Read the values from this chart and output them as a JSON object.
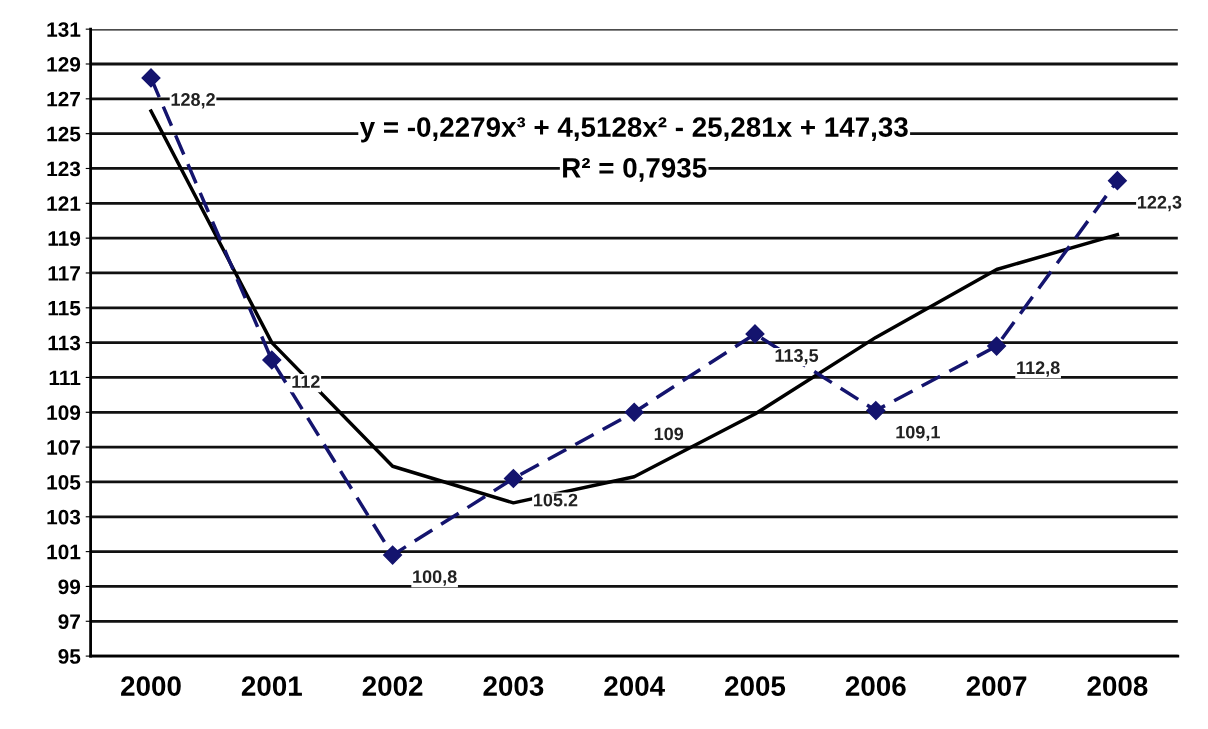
{
  "chart_data": {
    "type": "line",
    "categories": [
      "2000",
      "2001",
      "2002",
      "2003",
      "2004",
      "2005",
      "2006",
      "2007",
      "2008"
    ],
    "series": [
      {
        "color": "#14146e",
        "values": [
          128.2,
          112,
          100.8,
          105.2,
          109,
          113.5,
          109.1,
          112.8,
          122.3
        ],
        "value_labels": [
          "128,2",
          "112",
          "100,8",
          "105.2",
          "109",
          "113,5",
          "109,1",
          "112,8",
          "122,3"
        ],
        "marker": "diamond",
        "line_style": "dashed"
      },
      {
        "color": "#000000",
        "values": [
          126.3,
          113.0,
          105.9,
          103.8,
          105.3,
          108.9,
          113.3,
          117.2,
          119.2
        ],
        "marker": "none",
        "line_style": "solid"
      }
    ],
    "annotations": [
      "y = -0,2279x³ + 4,5128x² - 25,281x + 147,33",
      "R² = 0,7935"
    ],
    "ylim": [
      95,
      131
    ],
    "yticks": [
      95,
      97,
      99,
      101,
      103,
      105,
      107,
      109,
      111,
      113,
      115,
      117,
      119,
      121,
      123,
      125,
      127,
      129,
      131
    ],
    "grid": "y",
    "legend": false
  }
}
